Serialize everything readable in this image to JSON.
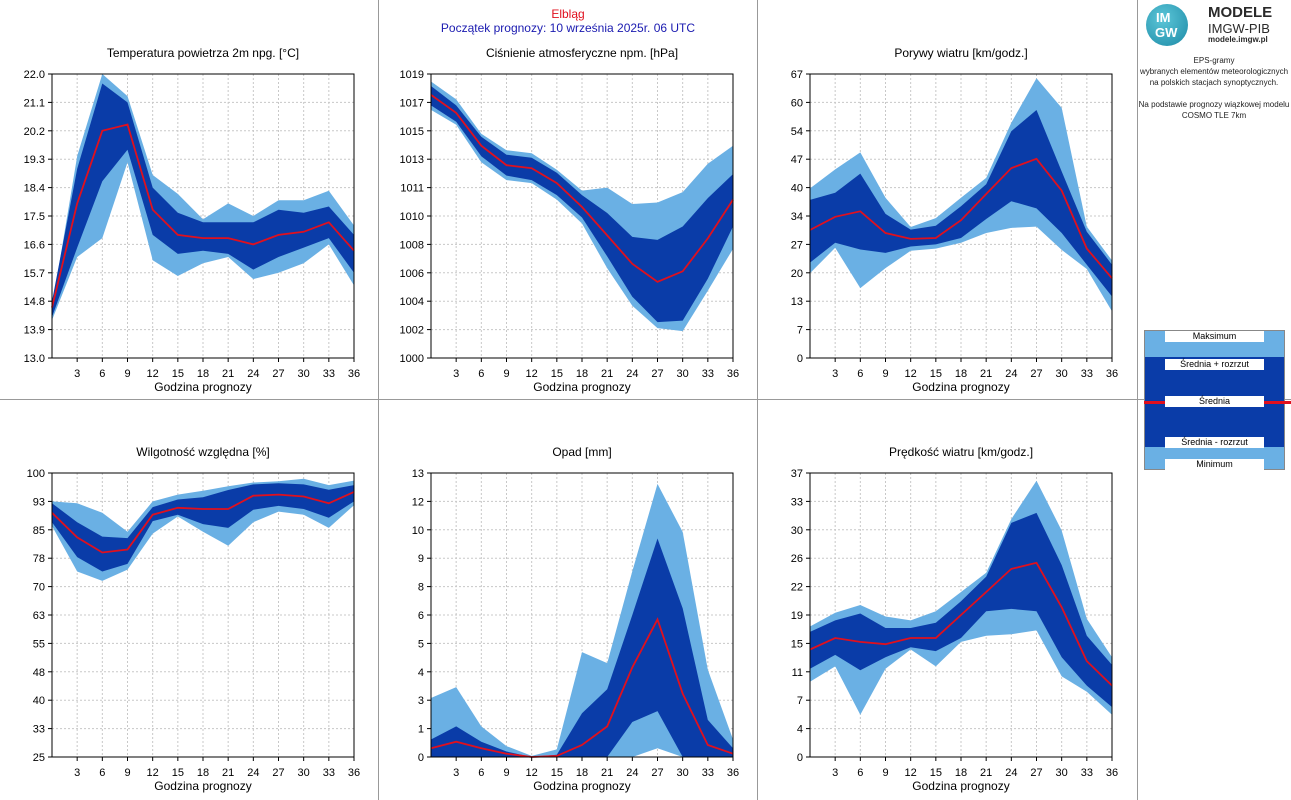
{
  "header": {
    "station": "Elbląg",
    "forecast_start": "Początek prognozy: 10 września 2025r. 06 UTC"
  },
  "logo": {
    "badge_top": "IM",
    "badge_bottom": "GW",
    "line1": "MODELE",
    "line2": "IMGW-PIB",
    "line3": "modele.imgw.pl"
  },
  "description": {
    "line1": "EPS-gramy",
    "line2": "wybranych elementów meteorologicznych",
    "line3": "na polskich stacjach  synoptycznych.",
    "line4": "Na podstawie prognozy wiązkowej modelu",
    "line5": "COSMO TLE 7km"
  },
  "legend": {
    "max": "Maksimum",
    "plus": "Średnia + rozrzut",
    "mean": "Średnia",
    "minus": "Średnia - rozrzut",
    "min": "Minimum"
  },
  "colors": {
    "minmax_band": "#6ab0e4",
    "spread_band": "#0a3ca8",
    "mean_line": "#e0101e",
    "station_title": "#e0101e",
    "forecast_title": "#1a1ab0",
    "grid": "#c8c8c8"
  },
  "chart_data": [
    {
      "type": "area",
      "title": "Temperatura powietrza 2m npg. [°C]",
      "xlabel": "Godzina prognozy",
      "x": [
        0,
        3,
        6,
        9,
        12,
        15,
        18,
        21,
        24,
        27,
        30,
        33,
        36
      ],
      "xticks": [
        3,
        6,
        9,
        12,
        15,
        18,
        21,
        24,
        27,
        30,
        33,
        36
      ],
      "ylim": [
        13.0,
        22.0
      ],
      "yticks": [
        "13.0",
        "13.9",
        "14.8",
        "15.7",
        "16.6",
        "17.5",
        "18.4",
        "19.3",
        "20.2",
        "21.1",
        "22.0"
      ],
      "series": [
        {
          "name": "Maksimum",
          "values": [
            14.6,
            19.4,
            22.0,
            21.3,
            18.8,
            18.2,
            17.4,
            17.9,
            17.5,
            18.0,
            18.0,
            18.3,
            17.2
          ]
        },
        {
          "name": "Średnia + rozrzut",
          "values": [
            14.8,
            19.0,
            21.7,
            21.1,
            18.4,
            17.6,
            17.3,
            17.3,
            17.3,
            17.7,
            17.6,
            17.8,
            16.9
          ]
        },
        {
          "name": "Średnia",
          "values": [
            14.6,
            17.9,
            20.2,
            20.4,
            17.7,
            16.9,
            16.8,
            16.8,
            16.6,
            16.9,
            17.0,
            17.3,
            16.4
          ]
        },
        {
          "name": "Średnia - rozrzut",
          "values": [
            14.3,
            16.5,
            18.6,
            19.6,
            16.9,
            16.3,
            16.4,
            16.3,
            15.8,
            16.2,
            16.5,
            16.8,
            15.7
          ]
        },
        {
          "name": "Minimum",
          "values": [
            14.2,
            16.2,
            16.8,
            19.2,
            16.1,
            15.6,
            16.0,
            16.2,
            15.5,
            15.7,
            16.0,
            16.6,
            15.3
          ]
        }
      ]
    },
    {
      "type": "area",
      "title": "Ciśnienie atmosferyczne npm. [hPa]",
      "xlabel": "Godzina prognozy",
      "x": [
        0,
        3,
        6,
        9,
        12,
        15,
        18,
        21,
        24,
        27,
        30,
        33,
        36
      ],
      "xticks": [
        3,
        6,
        9,
        12,
        15,
        18,
        21,
        24,
        27,
        30,
        33,
        36
      ],
      "ylim": [
        1000,
        1019
      ],
      "yticks": [
        "1000",
        "1002",
        "1004",
        "1006",
        "1008",
        "1010",
        "1011",
        "1013",
        "1015",
        "1017",
        "1019"
      ],
      "series": [
        {
          "name": "Maksimum",
          "values": [
            1018.5,
            1017.3,
            1015.0,
            1013.9,
            1013.7,
            1012.6,
            1011.2,
            1011.4,
            1010.3,
            1010.4,
            1011.1,
            1013.0,
            1014.2
          ]
        },
        {
          "name": "Średnia + rozrzut",
          "values": [
            1018.2,
            1016.9,
            1014.8,
            1013.6,
            1013.4,
            1012.4,
            1010.9,
            1009.7,
            1008.1,
            1007.9,
            1008.8,
            1010.7,
            1012.3
          ]
        },
        {
          "name": "Średnia",
          "values": [
            1017.6,
            1016.4,
            1014.2,
            1012.9,
            1012.7,
            1011.7,
            1010.1,
            1008.2,
            1006.3,
            1005.1,
            1005.8,
            1008.0,
            1010.6
          ]
        },
        {
          "name": "Średnia - rozrzut",
          "values": [
            1016.9,
            1015.8,
            1013.5,
            1012.2,
            1011.9,
            1010.9,
            1009.4,
            1006.8,
            1004.1,
            1002.4,
            1002.5,
            1005.3,
            1008.8
          ]
        },
        {
          "name": "Minimum",
          "values": [
            1016.6,
            1015.6,
            1013.1,
            1011.9,
            1011.7,
            1010.6,
            1009.0,
            1006.0,
            1003.5,
            1002.0,
            1001.8,
            1004.5,
            1007.3
          ]
        }
      ]
    },
    {
      "type": "area",
      "title": "Porywy wiatru [km/godz.]",
      "xlabel": "Godzina prognozy",
      "x": [
        0,
        3,
        6,
        9,
        12,
        15,
        18,
        21,
        24,
        27,
        30,
        33,
        36
      ],
      "xticks": [
        3,
        6,
        9,
        12,
        15,
        18,
        21,
        24,
        27,
        30,
        33,
        36
      ],
      "ylim": [
        0,
        67
      ],
      "yticks": [
        "0",
        "7",
        "13",
        "20",
        "27",
        "34",
        "40",
        "47",
        "54",
        "60",
        "67"
      ],
      "series": [
        {
          "name": "Maksimum",
          "values": [
            40.0,
            44.5,
            48.5,
            37.8,
            30.9,
            33.0,
            37.8,
            42.5,
            55.5,
            66.0,
            59.0,
            31.0,
            23.0
          ]
        },
        {
          "name": "Średnia + rozrzut",
          "values": [
            37.3,
            39.0,
            43.5,
            34.0,
            30.3,
            31.2,
            35.8,
            41.0,
            53.5,
            58.5,
            44.0,
            29.8,
            22.0
          ]
        },
        {
          "name": "Średnia",
          "values": [
            30.2,
            33.3,
            34.6,
            29.5,
            28.1,
            28.3,
            32.5,
            38.7,
            44.8,
            47.0,
            39.5,
            25.8,
            18.8
          ]
        },
        {
          "name": "Średnia - rozrzut",
          "values": [
            22.5,
            27.2,
            25.6,
            24.8,
            26.3,
            26.8,
            28.3,
            32.8,
            37.0,
            35.3,
            29.5,
            22.0,
            14.5
          ]
        },
        {
          "name": "Minimum",
          "values": [
            20.0,
            26.0,
            16.5,
            21.2,
            25.3,
            25.8,
            27.2,
            29.5,
            30.7,
            31.0,
            25.5,
            21.0,
            11.0
          ]
        }
      ]
    },
    {
      "type": "area",
      "title": "Wilgotność względna [%]",
      "xlabel": "Godzina prognozy",
      "x": [
        0,
        3,
        6,
        9,
        12,
        15,
        18,
        21,
        24,
        27,
        30,
        33,
        36
      ],
      "xticks": [
        3,
        6,
        9,
        12,
        15,
        18,
        21,
        24,
        27,
        30,
        33,
        36
      ],
      "ylim": [
        25,
        100
      ],
      "yticks": [
        "25",
        "33",
        "40",
        "48",
        "55",
        "63",
        "70",
        "78",
        "85",
        "93",
        "100"
      ],
      "series": [
        {
          "name": "Maksimum",
          "values": [
            92.5,
            92.0,
            89.5,
            84.5,
            92.5,
            94.3,
            95.3,
            96.5,
            97.5,
            97.8,
            98.5,
            96.8,
            98.0
          ]
        },
        {
          "name": "Średnia + rozrzut",
          "values": [
            92.0,
            87.0,
            83.2,
            82.8,
            91.0,
            93.0,
            93.6,
            95.5,
            97.0,
            97.3,
            97.0,
            95.6,
            96.8
          ]
        },
        {
          "name": "Średnia",
          "values": [
            89.5,
            83.0,
            79.0,
            79.8,
            89.0,
            90.8,
            90.5,
            90.5,
            94.0,
            94.3,
            93.8,
            92.0,
            95.0
          ]
        },
        {
          "name": "Średnia - rozrzut",
          "values": [
            87.0,
            77.8,
            74.0,
            76.0,
            87.3,
            89.0,
            86.5,
            85.5,
            90.3,
            91.3,
            90.5,
            88.2,
            92.5
          ]
        },
        {
          "name": "Minimum",
          "values": [
            86.0,
            74.0,
            71.5,
            74.5,
            84.0,
            88.5,
            84.5,
            80.8,
            87.0,
            89.8,
            89.0,
            85.5,
            91.5
          ]
        }
      ]
    },
    {
      "type": "area",
      "title": "Opad [mm]",
      "xlabel": "Godzina prognozy",
      "x": [
        0,
        3,
        6,
        9,
        12,
        15,
        18,
        21,
        24,
        27,
        30,
        33,
        36
      ],
      "xticks": [
        3,
        6,
        9,
        12,
        15,
        18,
        21,
        24,
        27,
        30,
        33,
        36
      ],
      "ylim": [
        0,
        13
      ],
      "yticks": [
        "0",
        "1",
        "3",
        "4",
        "5",
        "6",
        "8",
        "9",
        "10",
        "12",
        "13"
      ],
      "series": [
        {
          "name": "Maksimum",
          "values": [
            2.7,
            3.2,
            1.4,
            0.5,
            0.05,
            0.35,
            4.8,
            4.3,
            8.5,
            12.5,
            10.3,
            4.0,
            0.8
          ]
        },
        {
          "name": "Średnia + rozrzut",
          "values": [
            0.8,
            1.4,
            0.7,
            0.25,
            0.0,
            0.1,
            2.0,
            3.1,
            6.5,
            10.0,
            6.8,
            1.7,
            0.4
          ]
        },
        {
          "name": "Średnia",
          "values": [
            0.4,
            0.7,
            0.4,
            0.15,
            0.0,
            0.05,
            0.55,
            1.4,
            4.1,
            6.3,
            2.9,
            0.55,
            0.15
          ]
        },
        {
          "name": "Średnia - rozrzut",
          "values": [
            0.0,
            0.0,
            0.0,
            0.0,
            0.0,
            0.0,
            0.0,
            0.0,
            1.6,
            2.1,
            0.0,
            0.0,
            0.0
          ]
        },
        {
          "name": "Minimum",
          "values": [
            0.0,
            0.0,
            0.0,
            0.0,
            0.0,
            0.0,
            0.0,
            0.0,
            0.0,
            0.4,
            0.0,
            0.0,
            0.0
          ]
        }
      ]
    },
    {
      "type": "area",
      "title": "Prędkość wiatru [km/godz.]",
      "xlabel": "Godzina prognozy",
      "x": [
        0,
        3,
        6,
        9,
        12,
        15,
        18,
        21,
        24,
        27,
        30,
        33,
        36
      ],
      "xticks": [
        3,
        6,
        9,
        12,
        15,
        18,
        21,
        24,
        27,
        30,
        33,
        36
      ],
      "ylim": [
        0,
        37
      ],
      "yticks": [
        "0",
        "4",
        "7",
        "11",
        "15",
        "19",
        "22",
        "26",
        "30",
        "33",
        "37"
      ],
      "series": [
        {
          "name": "Maksimum",
          "values": [
            17.0,
            18.8,
            19.8,
            18.3,
            17.8,
            19.0,
            21.5,
            24.0,
            31.0,
            36.0,
            29.5,
            18.0,
            13.0
          ]
        },
        {
          "name": "Średnia + rozrzut",
          "values": [
            16.3,
            17.8,
            18.7,
            16.8,
            16.8,
            17.5,
            20.3,
            23.5,
            30.5,
            31.8,
            25.0,
            15.8,
            12.0
          ]
        },
        {
          "name": "Średnia",
          "values": [
            14.0,
            15.5,
            15.0,
            14.7,
            15.5,
            15.5,
            18.5,
            21.5,
            24.5,
            25.3,
            19.5,
            12.5,
            9.3
          ]
        },
        {
          "name": "Średnia - rozrzut",
          "values": [
            11.5,
            13.3,
            11.3,
            13.0,
            14.3,
            13.8,
            15.5,
            19.0,
            19.3,
            19.0,
            13.0,
            9.3,
            6.5
          ]
        },
        {
          "name": "Minimum",
          "values": [
            9.8,
            11.8,
            5.5,
            11.5,
            14.0,
            11.8,
            15.0,
            15.8,
            16.0,
            16.5,
            10.5,
            8.5,
            5.5
          ]
        }
      ]
    }
  ]
}
